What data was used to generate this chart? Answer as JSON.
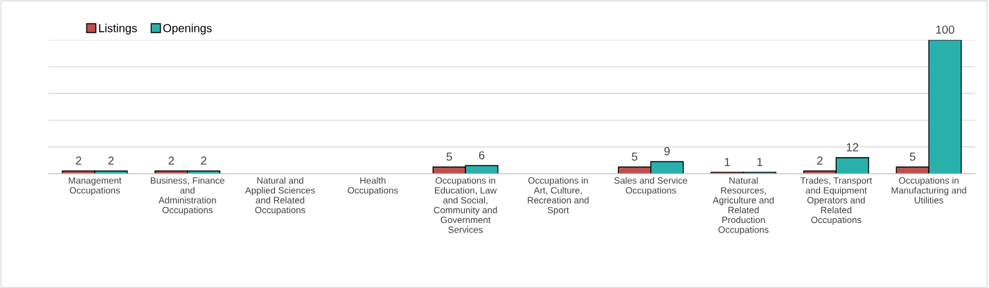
{
  "chart_data": {
    "type": "bar",
    "categories": [
      "Management Occupations",
      "Business, Finance and Administration Occupations",
      "Natural and Applied Sciences and Related Occupations",
      "Health Occupations",
      "Occupations in Education, Law and Social, Community and Government Services",
      "Occupations in Art, Culture, Recreation and Sport",
      "Sales and Service Occupations",
      "Natural Resources, Agriculture and Related Production Occupations",
      "Trades, Transport and Equipment Operators and Related Occupations",
      "Occupations in Manufacturing and Utilities"
    ],
    "series": [
      {
        "name": "Listings",
        "color": "#c0504d",
        "values": [
          2,
          2,
          null,
          null,
          5,
          null,
          5,
          1,
          2,
          5
        ]
      },
      {
        "name": "Openings",
        "color": "#2ab0aa",
        "values": [
          2,
          2,
          null,
          null,
          6,
          null,
          9,
          1,
          12,
          100
        ]
      }
    ],
    "ylim": [
      0,
      100
    ],
    "yticks": [
      {
        "value": 0,
        "label": null
      },
      {
        "value": 20,
        "label": null
      },
      {
        "value": 40,
        "label": null
      },
      {
        "value": 60,
        "label": null
      },
      {
        "value": 80,
        "label": null
      },
      {
        "value": 100,
        "label": null
      }
    ],
    "tick_labels": "x",
    "grid": "y",
    "legend": "top left",
    "data_labels": true
  }
}
